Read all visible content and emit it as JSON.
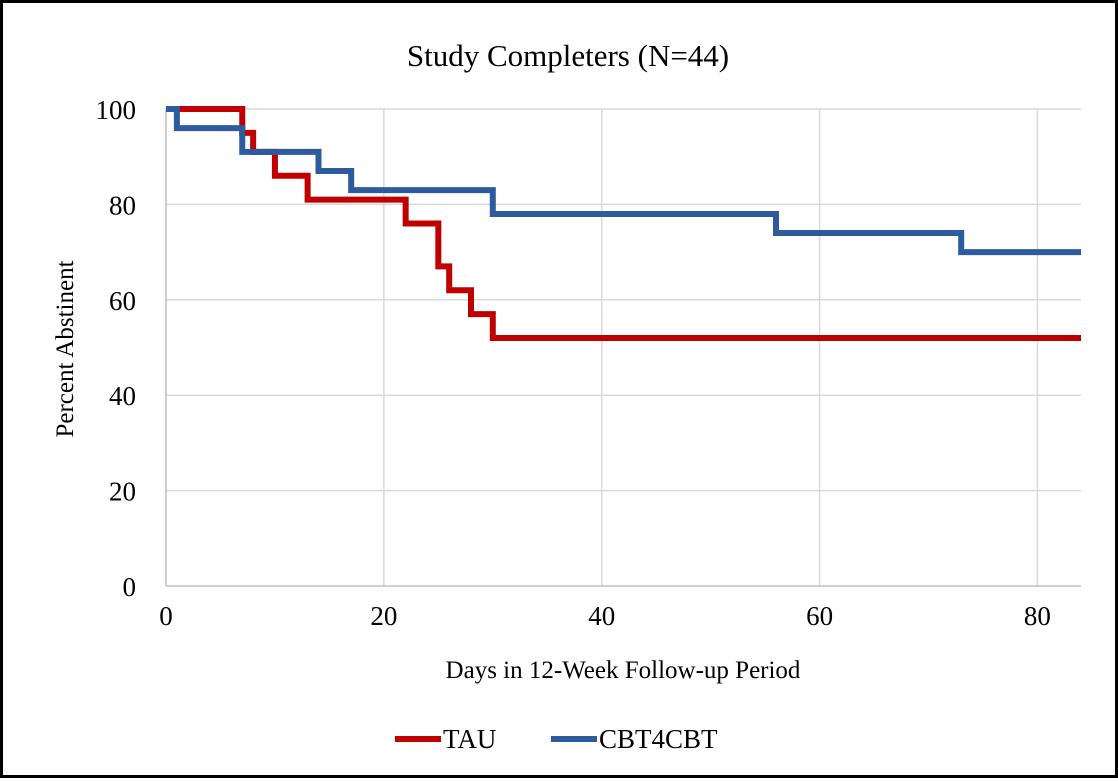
{
  "chart_data": {
    "type": "line",
    "step": true,
    "title": "Study Completers (N=44)",
    "xlabel": "Days in 12-Week Follow-up Period",
    "ylabel": "Percent Abstinent",
    "xlim": [
      0,
      84
    ],
    "ylim": [
      0,
      100
    ],
    "x_ticks": [
      0,
      20,
      40,
      60,
      80
    ],
    "y_ticks": [
      0,
      20,
      40,
      60,
      80,
      100
    ],
    "grid": true,
    "legend_position": "bottom",
    "series": [
      {
        "name": "TAU",
        "color": "#C00000",
        "x": [
          0,
          7,
          8,
          10,
          13,
          22,
          25,
          26,
          28,
          30,
          84
        ],
        "y": [
          100,
          95,
          91,
          86,
          81,
          76,
          67,
          62,
          57,
          52,
          52
        ]
      },
      {
        "name": "CBT4CBT",
        "color": "#2E5A9E",
        "x": [
          0,
          1,
          7,
          14,
          17,
          30,
          56,
          73,
          84
        ],
        "y": [
          100,
          96,
          91,
          87,
          83,
          78,
          74,
          70,
          70
        ]
      }
    ]
  }
}
